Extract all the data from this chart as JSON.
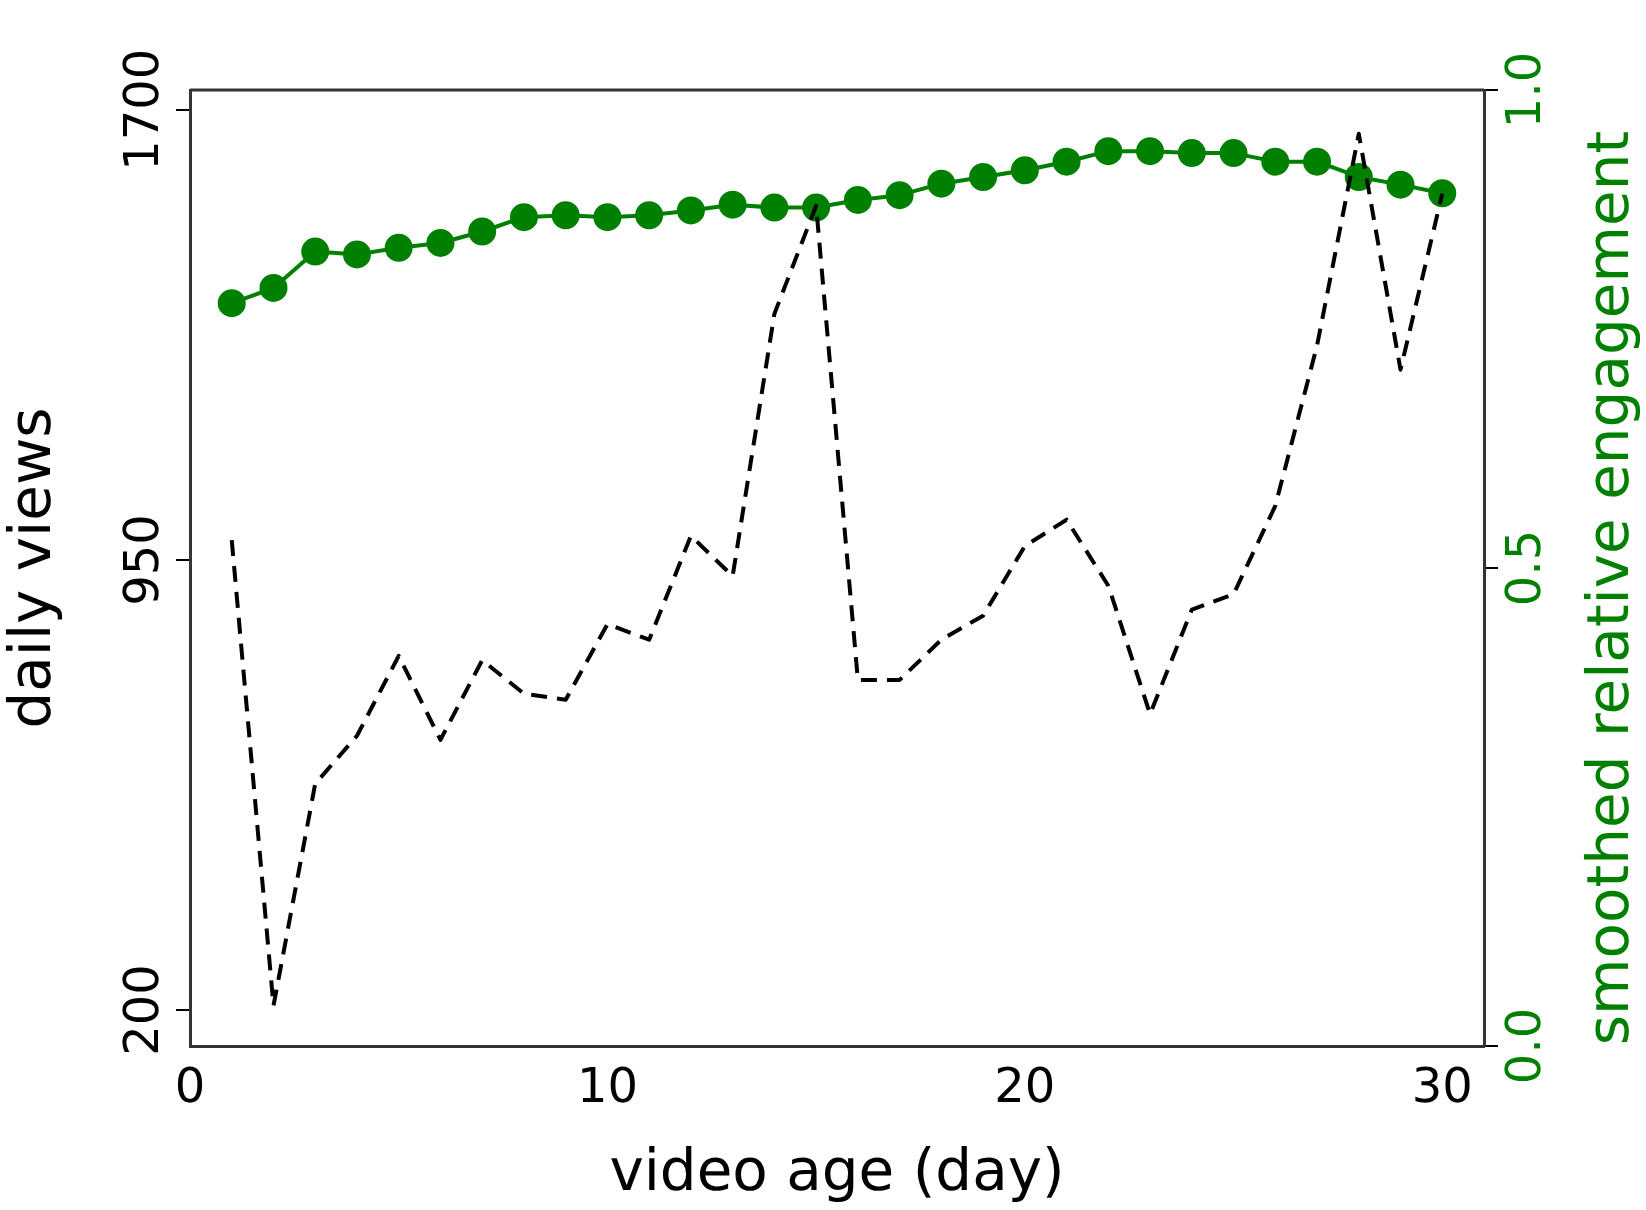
{
  "chart_data": {
    "type": "line",
    "xlabel": "video age (day)",
    "ylabel": "daily views",
    "y2label": "smoothed relative engagement",
    "x": [
      1,
      2,
      3,
      4,
      5,
      6,
      7,
      8,
      9,
      10,
      11,
      12,
      13,
      14,
      15,
      16,
      17,
      18,
      19,
      20,
      21,
      22,
      23,
      24,
      25,
      26,
      27,
      28,
      29,
      30
    ],
    "series": [
      {
        "type": "line",
        "color": "#000000",
        "line_style": "dashed",
        "marker": "none",
        "values": [
          983,
          207,
          577,
          657,
          790,
          650,
          783,
          727,
          717,
          843,
          817,
          990,
          923,
          1360,
          1540,
          750,
          750,
          817,
          857,
          973,
          1017,
          907,
          693,
          867,
          893,
          1040,
          1307,
          1660,
          1267,
          1560
        ]
      },
      {
        "type": "line",
        "axis": "y2",
        "color": "#008000",
        "line_style": "solid",
        "marker": "circle",
        "values": [
          0.777,
          0.793,
          0.831,
          0.828,
          0.835,
          0.84,
          0.852,
          0.867,
          0.869,
          0.867,
          0.869,
          0.874,
          0.88,
          0.877,
          0.877,
          0.885,
          0.89,
          0.902,
          0.909,
          0.916,
          0.925,
          0.936,
          0.936,
          0.934,
          0.934,
          0.925,
          0.925,
          0.909,
          0.901,
          0.892
        ]
      }
    ],
    "xlim": [
      0,
      31
    ],
    "xticks": [
      0,
      10,
      20,
      30
    ],
    "ylim": [
      140,
      1733
    ],
    "yticks": [
      200,
      950,
      1700
    ],
    "y2lim": [
      0,
      1
    ],
    "y2ticks": [
      {
        "value": 0,
        "label": "0.0"
      },
      {
        "value": 0.5,
        "label": "0.5"
      },
      {
        "value": 1,
        "label": "1.0"
      }
    ],
    "grid": false,
    "legend": false
  }
}
